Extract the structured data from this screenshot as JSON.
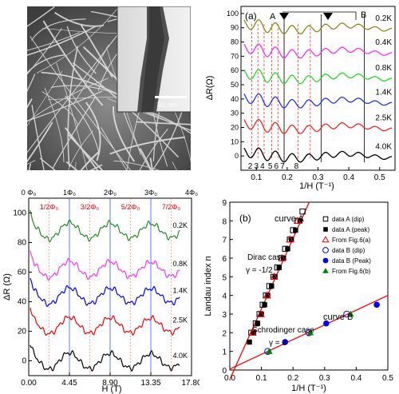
{
  "panels": {
    "micrograph": {
      "scale_bar": "50 nm"
    },
    "a": {
      "label": "(a)",
      "marker_A": "A",
      "marker_B": "B",
      "xlabel": "1/H (T⁻¹)",
      "ylabel": "ΔR(Ω)",
      "xticks": [
        "0.1",
        "0.2",
        "0.3",
        "0.4",
        "0.5"
      ],
      "yticks": [
        "0",
        "10",
        "20",
        "30",
        "40",
        "50",
        "60",
        "70",
        "80",
        "90",
        "100"
      ],
      "peak_numbers": [
        "2",
        "3",
        "4",
        "5",
        "6",
        "7",
        "8"
      ],
      "temps": [
        "0.2K",
        "0.4K",
        "0.8K",
        "1.4K",
        "2.5K",
        "4.0K"
      ]
    },
    "c": {
      "xlabel": "H (T)",
      "ylabel": "ΔR (Ω)",
      "xticks": [
        "0.00",
        "4.45",
        "8.90",
        "13.35",
        "17.80"
      ],
      "yticks": [
        "0",
        "20",
        "40",
        "60",
        "80",
        "100"
      ],
      "flux_top": [
        "0 Φ₀",
        "1Φ₀",
        "2Φ₀",
        "3Φ₀",
        "4Φ₀"
      ],
      "half_flux": [
        "1/2Φ₀",
        "3/2Φ₀",
        "5/2Φ₀",
        "7/2Φ₀"
      ],
      "temps": [
        "0.2K",
        "0.8K",
        "1.4K",
        "2.5K",
        "4.0K"
      ]
    },
    "b": {
      "label": "(b)",
      "xlabel": "1/H (T⁻¹)",
      "ylabel": "Landau index n",
      "xticks": [
        "0.0",
        "0.1",
        "0.2",
        "0.3",
        "0.4",
        "0.5"
      ],
      "yticks": [
        "0",
        "1",
        "2",
        "3",
        "4",
        "5",
        "6",
        "7",
        "8",
        "9"
      ],
      "curve_A": "curve A",
      "curve_B": "curve B",
      "dirac_case": "Dirac case",
      "dirac_gamma": "γ = -1/2",
      "schrodinger_case": "Schrodinger case",
      "schrodinger_gamma": "γ = 0",
      "legend": [
        "data A (dip)",
        "data A (peak)",
        "From Fig.6(a)",
        "data B (dip)",
        "data B (Peak)",
        "From Fig.6(b)"
      ]
    }
  },
  "chart_data": [
    {
      "panel": "a",
      "type": "line",
      "xlabel": "1/H (T⁻¹)",
      "ylabel": "ΔR(Ω)",
      "xlim": [
        0.05,
        0.55
      ],
      "ylim": [
        -10,
        105
      ],
      "series_colors": [
        "#8a8a1a",
        "#ff2cff",
        "#22dd22",
        "#2233ff",
        "#ff2222",
        "#000000"
      ],
      "offsets": [
        90,
        73,
        55,
        38,
        20,
        0
      ],
      "dashed_lines_x": [
        0.085,
        0.105,
        0.125,
        0.15,
        0.17,
        0.19,
        0.235,
        0.275
      ],
      "solid_lines_x": [
        0.19,
        0.31,
        0.45
      ]
    },
    {
      "panel": "c",
      "type": "line",
      "xlabel": "H (T)",
      "ylabel": "ΔR (Ω)",
      "xlim": [
        0,
        17.8
      ],
      "ylim": [
        -10,
        110
      ],
      "series_colors": [
        "#228b22",
        "#ff33ff",
        "#0000ff",
        "#ff0000",
        "#000000"
      ],
      "offsets": [
        88,
        62,
        44,
        24,
        0
      ],
      "flux_lines_x": [
        4.45,
        8.9,
        13.35
      ]
    },
    {
      "panel": "b",
      "type": "scatter",
      "xlabel": "1/H (T⁻¹)",
      "ylabel": "Landau index n",
      "xlim": [
        0,
        0.5
      ],
      "ylim": [
        0,
        9
      ],
      "series": [
        {
          "name": "data A (dip)",
          "marker": "open-square",
          "color": "#000000",
          "points": [
            [
              0.068,
              2
            ],
            [
              0.082,
              2.5
            ],
            [
              0.094,
              3
            ],
            [
              0.104,
              3.5
            ],
            [
              0.114,
              4
            ],
            [
              0.125,
              4.5
            ],
            [
              0.138,
              5
            ],
            [
              0.15,
              5.5
            ],
            [
              0.163,
              6
            ],
            [
              0.175,
              6.5
            ],
            [
              0.19,
              7
            ],
            [
              0.2,
              7.5
            ],
            [
              0.215,
              8
            ],
            [
              0.23,
              8.5
            ]
          ]
        },
        {
          "name": "data A (peak)",
          "marker": "filled-square",
          "color": "#000000",
          "points": [
            [
              0.062,
              1.5
            ],
            [
              0.075,
              2
            ],
            [
              0.088,
              2.5
            ],
            [
              0.1,
              3
            ],
            [
              0.11,
              3.5
            ],
            [
              0.12,
              4
            ],
            [
              0.132,
              4.5
            ],
            [
              0.143,
              5
            ],
            [
              0.156,
              5.5
            ],
            [
              0.17,
              6
            ],
            [
              0.183,
              6.5
            ],
            [
              0.195,
              7
            ],
            [
              0.208,
              7.5
            ],
            [
              0.222,
              8
            ]
          ]
        },
        {
          "name": "From Fig.6(a)",
          "marker": "open-triangle",
          "color": "#ff0000",
          "points": [
            [
              0.072,
              2
            ],
            [
              0.098,
              3
            ],
            [
              0.118,
              4
            ],
            [
              0.14,
              5
            ],
            [
              0.165,
              6
            ],
            [
              0.19,
              7
            ],
            [
              0.214,
              8
            ]
          ]
        },
        {
          "name": "data B (dip)",
          "marker": "open-circle",
          "color": "#0000ff",
          "points": [
            [
              0.12,
              1
            ],
            [
              0.25,
              2
            ],
            [
              0.37,
              3
            ]
          ]
        },
        {
          "name": "data B (Peak)",
          "marker": "filled-circle",
          "color": "#0000ff",
          "points": [
            [
              0.175,
              1.5
            ],
            [
              0.305,
              2.5
            ],
            [
              0.465,
              3.5
            ]
          ]
        },
        {
          "name": "From Fig.6(b)",
          "marker": "filled-triangle",
          "color": "#008000",
          "points": [
            [
              0.125,
              1
            ],
            [
              0.255,
              2
            ],
            [
              0.382,
              3
            ]
          ]
        }
      ],
      "fit_lines": [
        {
          "name": "curve A",
          "intercept": -0.5,
          "slope": 37.8
        },
        {
          "name": "curve B",
          "intercept": 0.05,
          "slope": 7.9
        }
      ]
    }
  ]
}
